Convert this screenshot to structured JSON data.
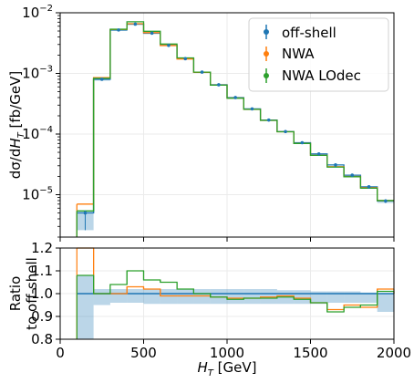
{
  "chart_data": [
    {
      "type": "line",
      "panel": "main",
      "xlabel": "$H_T$  [GeV]",
      "ylabel": "dσ/dH_T  [fb/GeV]",
      "yscale": "log",
      "xlim": [
        0,
        2000
      ],
      "ylim": [
        2e-06,
        0.01
      ],
      "grid": true,
      "legend_position": "top-right",
      "x_ticks": [
        "0",
        "500",
        "1000",
        "1500",
        "2000"
      ],
      "y_ticks": [
        {
          "value": 1e-05,
          "mant": "10",
          "exp": "−5"
        },
        {
          "value": 0.0001,
          "mant": "10",
          "exp": "−4"
        },
        {
          "value": 0.001,
          "mant": "10",
          "exp": "−3"
        },
        {
          "value": 0.01,
          "mant": "10",
          "exp": "−2"
        }
      ],
      "bin_edges": [
        100,
        200,
        300,
        400,
        500,
        600,
        700,
        800,
        900,
        1000,
        1100,
        1200,
        1300,
        1400,
        1500,
        1600,
        1700,
        1800,
        1900,
        2000
      ],
      "series": [
        {
          "name": "off-shell",
          "color": "#1f77b4",
          "style": "errorbar",
          "values": [
            5e-06,
            0.0008,
            0.0052,
            0.0065,
            0.0046,
            0.0029,
            0.00175,
            0.00105,
            0.00065,
            0.0004,
            0.00026,
            0.00017,
            0.00011,
            7.2e-05,
            4.7e-05,
            3.1e-05,
            2.1e-05,
            1.35e-05,
            7.9e-06
          ],
          "band_low": [
            2.6e-06,
            0.00076,
            0.005,
            0.0063,
            0.0045,
            0.00285,
            0.00172,
            0.00103,
            0.00064,
            0.000395,
            0.000257,
            0.000168,
            0.000109,
            7.1e-05,
            4.6e-05,
            3.05e-05,
            2.05e-05,
            1.32e-05,
            7.3e-06
          ],
          "band_high": [
            5.5e-06,
            0.00083,
            0.00535,
            0.00665,
            0.0047,
            0.00295,
            0.00178,
            0.00107,
            0.00066,
            0.000405,
            0.000263,
            0.000172,
            0.000111,
            7.3e-05,
            4.75e-05,
            3.15e-05,
            2.12e-05,
            1.36e-05,
            7.9e-06
          ]
        },
        {
          "name": "NWA",
          "color": "#ff7f0e",
          "style": "step",
          "values": [
            7e-06,
            0.00085,
            0.0053,
            0.0066,
            0.0047,
            0.00288,
            0.00173,
            0.00104,
            0.00064,
            0.000392,
            0.000255,
            0.000168,
            0.000109,
            7e-05,
            4.45e-05,
            2.9e-05,
            2e-05,
            1.3e-05,
            8e-06
          ]
        },
        {
          "name": "NWA LOdec",
          "color": "#2ca02c",
          "style": "step",
          "values": [
            5.4e-06,
            0.00083,
            0.00535,
            0.0071,
            0.00495,
            0.00305,
            0.0018,
            0.00105,
            0.00064,
            0.00039,
            0.000256,
            0.000168,
            0.000109,
            7e-05,
            4.45e-05,
            2.85e-05,
            1.98e-05,
            1.28e-05,
            8e-06
          ]
        }
      ]
    },
    {
      "type": "line",
      "panel": "ratio",
      "xlabel": "$H_T$  [GeV]",
      "ylabel": "Ratio to off-shell",
      "ylabel_lines": [
        "Ratio",
        "to off-shell"
      ],
      "xlim": [
        0,
        2000
      ],
      "ylim": [
        0.8,
        1.2
      ],
      "grid": true,
      "y_ticks": [
        "0.8",
        "0.9",
        "1.0",
        "1.1",
        "1.2"
      ],
      "x_ticks": [
        "0",
        "500",
        "1000",
        "1500",
        "2000"
      ],
      "bin_edges": [
        100,
        200,
        300,
        400,
        500,
        600,
        700,
        800,
        900,
        1000,
        1100,
        1200,
        1300,
        1400,
        1500,
        1600,
        1700,
        1800,
        1900,
        2000
      ],
      "reference": 1.0,
      "series": [
        {
          "name": "off-shell band",
          "color": "#1f77b4",
          "band_low": [
            0.8,
            0.95,
            0.96,
            0.96,
            0.955,
            0.955,
            0.955,
            0.955,
            0.955,
            0.955,
            0.955,
            0.955,
            0.955,
            0.955,
            0.955,
            0.96,
            0.96,
            0.96,
            0.92
          ],
          "band_high": [
            1.08,
            1.02,
            1.02,
            1.02,
            1.02,
            1.02,
            1.02,
            1.02,
            1.02,
            1.02,
            1.02,
            1.02,
            1.015,
            1.015,
            1.01,
            1.01,
            1.01,
            1.005,
            1.0
          ]
        },
        {
          "name": "NWA",
          "color": "#ff7f0e",
          "values": [
            1.22,
            1.0,
            1.0,
            1.03,
            1.02,
            0.99,
            0.99,
            0.99,
            0.985,
            0.98,
            0.98,
            0.985,
            0.99,
            0.98,
            0.96,
            0.93,
            0.95,
            0.94,
            1.02
          ]
        },
        {
          "name": "NWA LOdec",
          "color": "#2ca02c",
          "values": [
            1.08,
            1.0,
            1.04,
            1.1,
            1.06,
            1.05,
            1.02,
            1.0,
            0.985,
            0.975,
            0.98,
            0.98,
            0.985,
            0.975,
            0.96,
            0.92,
            0.94,
            0.95,
            1.01
          ]
        }
      ]
    }
  ]
}
